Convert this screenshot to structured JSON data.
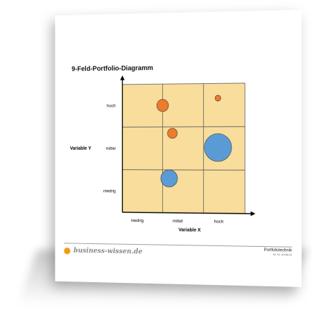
{
  "document": {
    "title": "9-Feld-Portfolio-Diagramm",
    "brand": "business-wissen.de",
    "doc_type": "Portfoliotechnik",
    "article_no": "Art.-Nr. 30-056.00"
  },
  "colors": {
    "field": "#f8dd9c",
    "orange": "#ee7a2c",
    "blue": "#5b9bd5",
    "grid": "#555555",
    "brand_dot": "#f39c12"
  },
  "chart_data": {
    "type": "scatter",
    "title": "9-Feld-Portfolio-Diagramm",
    "xlabel": "Variable X",
    "ylabel": "Variable Y",
    "x_categories": [
      "niedrig",
      "mittel",
      "hoch"
    ],
    "y_categories": [
      "niedrig",
      "mittel",
      "hoch"
    ],
    "xlim": [
      0,
      3
    ],
    "ylim": [
      0,
      3
    ],
    "grid": true,
    "bubbles": [
      {
        "x": 1.0,
        "y": 2.5,
        "size": 0.29,
        "color": "#ee7a2c"
      },
      {
        "x": 2.35,
        "y": 2.66,
        "size": 0.14,
        "color": "#ee7a2c"
      },
      {
        "x": 1.24,
        "y": 1.85,
        "size": 0.24,
        "color": "#ee7a2c"
      },
      {
        "x": 2.35,
        "y": 1.52,
        "size": 0.66,
        "color": "#5b9bd5"
      },
      {
        "x": 1.16,
        "y": 0.8,
        "size": 0.41,
        "color": "#5b9bd5"
      }
    ]
  }
}
